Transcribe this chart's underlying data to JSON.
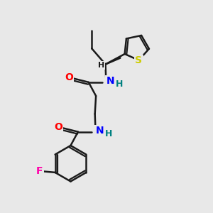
{
  "bg_color": "#e8e8e8",
  "bond_color": "#1a1a1a",
  "bond_width": 1.8,
  "atom_colors": {
    "O": "#ff0000",
    "N": "#0000ff",
    "H_on_N": "#008080",
    "S": "#cccc00",
    "F": "#ff00aa",
    "C": "#1a1a1a"
  },
  "font_size": 9,
  "figsize": [
    3.0,
    3.0
  ],
  "dpi": 100,
  "xlim": [
    0,
    10
  ],
  "ylim": [
    0,
    10
  ]
}
